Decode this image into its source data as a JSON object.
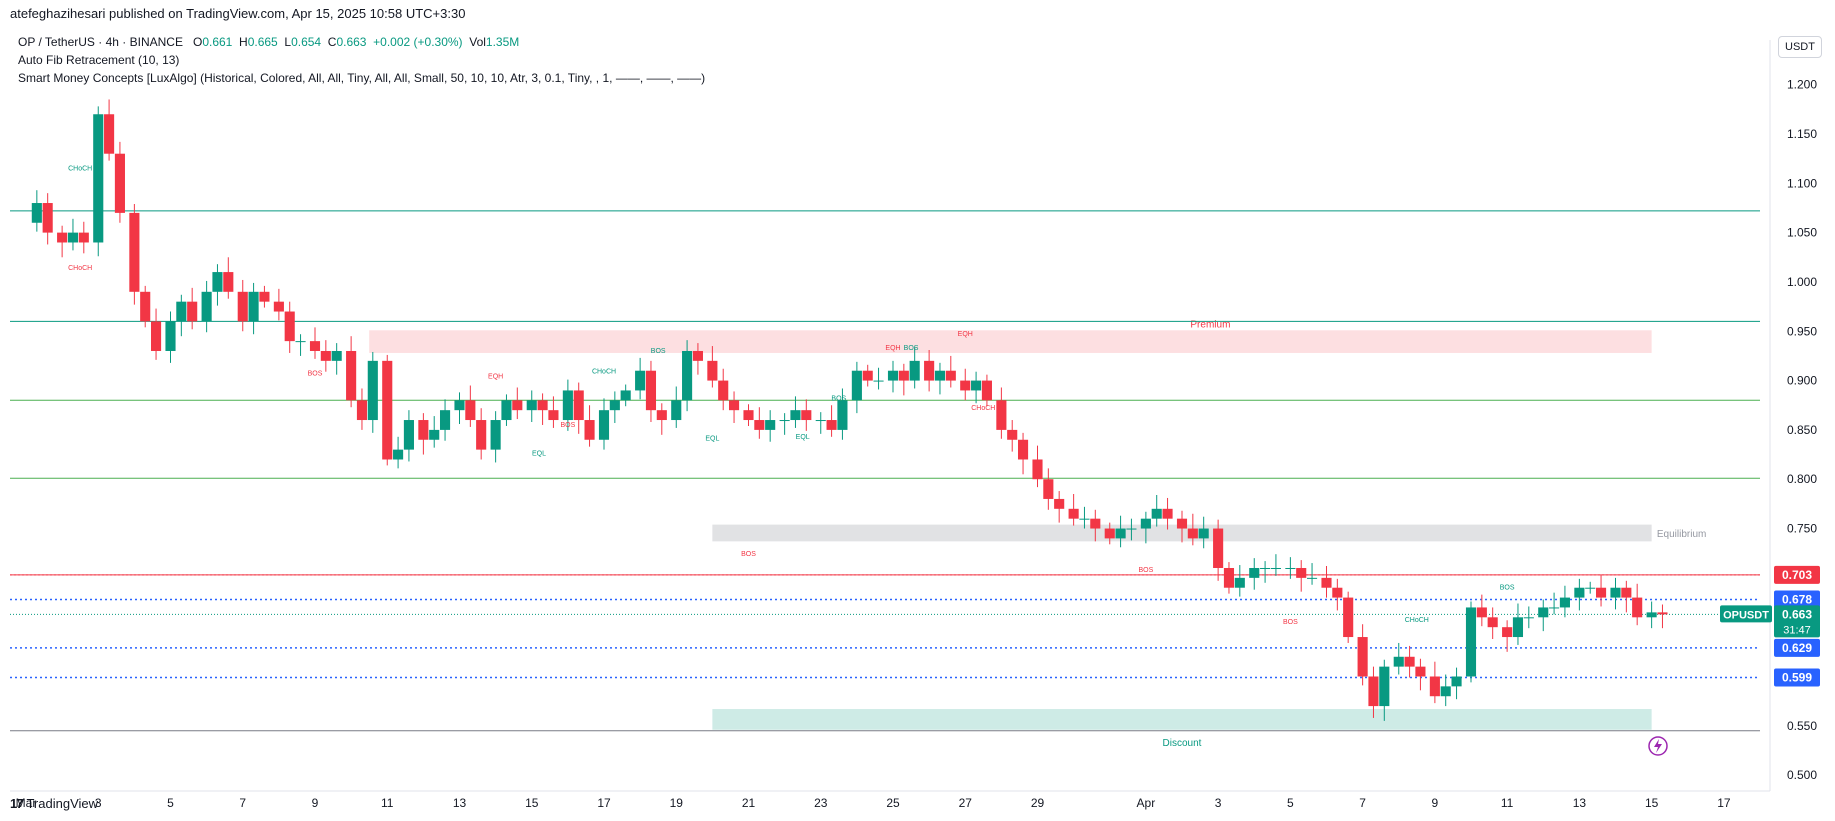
{
  "header": {
    "published": "atefeghazihesari published on TradingView.com, Apr 15, 2025 10:58 UTC+3:30"
  },
  "legend": {
    "symbol": "OP / TetherUS · 4h · BINANCE",
    "o_label": "O",
    "o_val": "0.661",
    "h_label": "H",
    "h_val": "0.665",
    "l_label": "L",
    "l_val": "0.654",
    "c_label": "C",
    "c_val": "0.663",
    "change": "+0.002 (+0.30%)",
    "vol_label": "Vol",
    "vol_val": "1.35M",
    "indicator1": "Auto Fib Retracement (10, 13)",
    "indicator2": "Smart Money Concepts [LuxAlgo] (Historical, Colored, All, All, Tiny, All, All, Small, 50, 10, 10, Atr, 3, 0.1, Tiny, , 1, ——, ——, ——)"
  },
  "currency": "USDT",
  "footer": {
    "brand": "TradingView",
    "logo_glyph": "17"
  },
  "colors": {
    "up": "#089981",
    "down": "#f23645",
    "premium": "#f23645",
    "discount": "#089981",
    "fib_blue": "#2962ff"
  },
  "chart_data": {
    "type": "candlestick",
    "ylim": [
      0.49,
      1.225
    ],
    "y_ticks": [
      "1.200",
      "1.150",
      "1.100",
      "1.050",
      "1.000",
      "0.950",
      "0.900",
      "0.850",
      "0.800",
      "0.750",
      "0.550",
      "0.500"
    ],
    "x_ticks": [
      {
        "day": 0,
        "label": "Mar"
      },
      {
        "day": 2,
        "label": "3"
      },
      {
        "day": 4,
        "label": "5"
      },
      {
        "day": 6,
        "label": "7"
      },
      {
        "day": 8,
        "label": "9"
      },
      {
        "day": 10,
        "label": "11"
      },
      {
        "day": 12,
        "label": "13"
      },
      {
        "day": 14,
        "label": "15"
      },
      {
        "day": 16,
        "label": "17"
      },
      {
        "day": 18,
        "label": "19"
      },
      {
        "day": 20,
        "label": "21"
      },
      {
        "day": 22,
        "label": "23"
      },
      {
        "day": 24,
        "label": "25"
      },
      {
        "day": 26,
        "label": "27"
      },
      {
        "day": 28,
        "label": "29"
      },
      {
        "day": 31,
        "label": "Apr"
      },
      {
        "day": 33,
        "label": "3"
      },
      {
        "day": 35,
        "label": "5"
      },
      {
        "day": 37,
        "label": "7"
      },
      {
        "day": 39,
        "label": "9"
      },
      {
        "day": 41,
        "label": "11"
      },
      {
        "day": 43,
        "label": "13"
      },
      {
        "day": 45,
        "label": "15"
      },
      {
        "day": 47,
        "label": "17"
      }
    ],
    "price_labels": [
      {
        "value": 0.703,
        "text": "0.703",
        "color": "#f23645"
      },
      {
        "value": 0.678,
        "text": "0.678",
        "color": "#2962ff"
      },
      {
        "value": 0.629,
        "text": "0.629",
        "color": "#2962ff"
      },
      {
        "value": 0.599,
        "text": "0.599",
        "color": "#2962ff"
      }
    ],
    "current": {
      "symbol": "OPUSDT",
      "price": "0.663",
      "countdown": "31:47",
      "value": 0.663
    },
    "close_path": [
      [
        0.0,
        1.06
      ],
      [
        0.3,
        1.08
      ],
      [
        0.6,
        1.05
      ],
      [
        1.0,
        1.04
      ],
      [
        1.3,
        1.05
      ],
      [
        1.6,
        1.04
      ],
      [
        2.0,
        1.17
      ],
      [
        2.3,
        1.13
      ],
      [
        2.6,
        1.07
      ],
      [
        3.0,
        0.99
      ],
      [
        3.3,
        0.96
      ],
      [
        3.6,
        0.93
      ],
      [
        4.0,
        0.96
      ],
      [
        4.3,
        0.98
      ],
      [
        4.6,
        0.96
      ],
      [
        5.0,
        0.99
      ],
      [
        5.3,
        1.01
      ],
      [
        5.6,
        0.99
      ],
      [
        6.0,
        0.96
      ],
      [
        6.3,
        0.99
      ],
      [
        6.6,
        0.98
      ],
      [
        7.0,
        0.97
      ],
      [
        7.3,
        0.94
      ],
      [
        7.6,
        0.94
      ],
      [
        8.0,
        0.93
      ],
      [
        8.3,
        0.92
      ],
      [
        8.6,
        0.93
      ],
      [
        9.0,
        0.88
      ],
      [
        9.3,
        0.86
      ],
      [
        9.6,
        0.92
      ],
      [
        10.0,
        0.82
      ],
      [
        10.3,
        0.83
      ],
      [
        10.6,
        0.86
      ],
      [
        11.0,
        0.84
      ],
      [
        11.3,
        0.85
      ],
      [
        11.6,
        0.87
      ],
      [
        12.0,
        0.88
      ],
      [
        12.3,
        0.86
      ],
      [
        12.6,
        0.83
      ],
      [
        13.0,
        0.86
      ],
      [
        13.3,
        0.88
      ],
      [
        13.6,
        0.87
      ],
      [
        14.0,
        0.88
      ],
      [
        14.3,
        0.87
      ],
      [
        14.6,
        0.86
      ],
      [
        15.0,
        0.89
      ],
      [
        15.3,
        0.86
      ],
      [
        15.6,
        0.84
      ],
      [
        16.0,
        0.87
      ],
      [
        16.3,
        0.88
      ],
      [
        16.6,
        0.89
      ],
      [
        17.0,
        0.91
      ],
      [
        17.3,
        0.87
      ],
      [
        17.6,
        0.86
      ],
      [
        18.0,
        0.88
      ],
      [
        18.3,
        0.93
      ],
      [
        18.6,
        0.92
      ],
      [
        19.0,
        0.9
      ],
      [
        19.3,
        0.88
      ],
      [
        19.6,
        0.87
      ],
      [
        20.0,
        0.86
      ],
      [
        20.3,
        0.85
      ],
      [
        20.6,
        0.86
      ],
      [
        21.0,
        0.86
      ],
      [
        21.3,
        0.87
      ],
      [
        21.6,
        0.86
      ],
      [
        22.0,
        0.86
      ],
      [
        22.3,
        0.85
      ],
      [
        22.6,
        0.88
      ],
      [
        23.0,
        0.91
      ],
      [
        23.3,
        0.9
      ],
      [
        23.6,
        0.9
      ],
      [
        24.0,
        0.91
      ],
      [
        24.3,
        0.9
      ],
      [
        24.6,
        0.92
      ],
      [
        25.0,
        0.9
      ],
      [
        25.3,
        0.91
      ],
      [
        25.6,
        0.9
      ],
      [
        26.0,
        0.89
      ],
      [
        26.3,
        0.9
      ],
      [
        26.6,
        0.88
      ],
      [
        27.0,
        0.85
      ],
      [
        27.3,
        0.84
      ],
      [
        27.6,
        0.82
      ],
      [
        28.0,
        0.8
      ],
      [
        28.3,
        0.78
      ],
      [
        28.6,
        0.77
      ],
      [
        29.0,
        0.76
      ],
      [
        29.3,
        0.76
      ],
      [
        29.6,
        0.75
      ],
      [
        30.0,
        0.74
      ],
      [
        30.3,
        0.75
      ],
      [
        30.6,
        0.75
      ],
      [
        31.0,
        0.76
      ],
      [
        31.3,
        0.77
      ],
      [
        31.6,
        0.76
      ],
      [
        32.0,
        0.75
      ],
      [
        32.3,
        0.74
      ],
      [
        32.6,
        0.75
      ],
      [
        33.0,
        0.71
      ],
      [
        33.3,
        0.69
      ],
      [
        33.6,
        0.7
      ],
      [
        34.0,
        0.71
      ],
      [
        34.3,
        0.71
      ],
      [
        34.6,
        0.71
      ],
      [
        35.0,
        0.71
      ],
      [
        35.3,
        0.7
      ],
      [
        35.6,
        0.7
      ],
      [
        36.0,
        0.69
      ],
      [
        36.3,
        0.68
      ],
      [
        36.6,
        0.64
      ],
      [
        37.0,
        0.6
      ],
      [
        37.3,
        0.57
      ],
      [
        37.6,
        0.61
      ],
      [
        38.0,
        0.62
      ],
      [
        38.3,
        0.61
      ],
      [
        38.6,
        0.6
      ],
      [
        39.0,
        0.58
      ],
      [
        39.3,
        0.59
      ],
      [
        39.6,
        0.6
      ],
      [
        40.0,
        0.67
      ],
      [
        40.3,
        0.66
      ],
      [
        40.6,
        0.65
      ],
      [
        41.0,
        0.64
      ],
      [
        41.3,
        0.66
      ],
      [
        41.6,
        0.66
      ],
      [
        42.0,
        0.67
      ],
      [
        42.3,
        0.67
      ],
      [
        42.6,
        0.68
      ],
      [
        43.0,
        0.69
      ],
      [
        43.3,
        0.69
      ],
      [
        43.6,
        0.68
      ],
      [
        44.0,
        0.69
      ],
      [
        44.3,
        0.68
      ],
      [
        44.6,
        0.66
      ],
      [
        45.0,
        0.665
      ],
      [
        45.3,
        0.663
      ]
    ],
    "zones": [
      {
        "name": "Premium",
        "kind": "premium",
        "x0": 9.5,
        "x1": 45.0,
        "y0": 0.928,
        "y1": 0.951
      },
      {
        "name": "Equilibrium",
        "kind": "equilibrium",
        "x0": 19.0,
        "x1": 45.0,
        "y0": 0.737,
        "y1": 0.754
      },
      {
        "name": "Discount",
        "kind": "discount",
        "x0": 19.0,
        "x1": 45.0,
        "y0": 0.546,
        "y1": 0.567
      }
    ],
    "series": [
      {
        "name": "Smart Money Concepts [LuxAlgo]",
        "annotations": [
          {
            "text": "CHoCH",
            "day": 1.5,
            "y": 1.113,
            "color": "#089981"
          },
          {
            "text": "CHoCH",
            "day": 1.5,
            "y": 1.012,
            "color": "#f23645"
          },
          {
            "text": "BOS",
            "day": 8.0,
            "y": 0.905,
            "color": "#f23645"
          },
          {
            "text": "EQH",
            "day": 13.0,
            "y": 0.902,
            "color": "#f23645"
          },
          {
            "text": "CHoCH",
            "day": 16.0,
            "y": 0.907,
            "color": "#089981"
          },
          {
            "text": "BOS",
            "day": 15.0,
            "y": 0.853,
            "color": "#f23645"
          },
          {
            "text": "BOS",
            "day": 17.5,
            "y": 0.928,
            "color": "#089981"
          },
          {
            "text": "EQL",
            "day": 14.2,
            "y": 0.824,
            "color": "#089981"
          },
          {
            "text": "EQL",
            "day": 19.0,
            "y": 0.839,
            "color": "#089981"
          },
          {
            "text": "EQL",
            "day": 21.5,
            "y": 0.841,
            "color": "#089981"
          },
          {
            "text": "BOS",
            "day": 22.5,
            "y": 0.88,
            "color": "#089981"
          },
          {
            "text": "EQH",
            "day": 24.0,
            "y": 0.931,
            "color": "#f23645"
          },
          {
            "text": "BOS",
            "day": 24.5,
            "y": 0.931,
            "color": "#089981"
          },
          {
            "text": "EQH",
            "day": 26.0,
            "y": 0.945,
            "color": "#f23645"
          },
          {
            "text": "CHoCH",
            "day": 26.5,
            "y": 0.87,
            "color": "#f23645"
          },
          {
            "text": "BOS",
            "day": 20.0,
            "y": 0.722,
            "color": "#f23645"
          },
          {
            "text": "BOS",
            "day": 31.0,
            "y": 0.706,
            "color": "#f23645"
          },
          {
            "text": "BOS",
            "day": 35.0,
            "y": 0.653,
            "color": "#f23645"
          },
          {
            "text": "CHoCH",
            "day": 38.5,
            "y": 0.655,
            "color": "#089981"
          },
          {
            "text": "BOS",
            "day": 41.0,
            "y": 0.688,
            "color": "#089981"
          }
        ]
      }
    ],
    "horizontal_lines": [
      {
        "value": 1.072,
        "color": "#089981"
      },
      {
        "value": 0.96,
        "color": "#089981"
      },
      {
        "value": 0.88,
        "color": "#4caf50"
      },
      {
        "value": 0.801,
        "color": "#4caf50"
      },
      {
        "value": 0.703,
        "color": "#f23645"
      },
      {
        "value": 0.545,
        "color": "#787b86"
      }
    ]
  }
}
